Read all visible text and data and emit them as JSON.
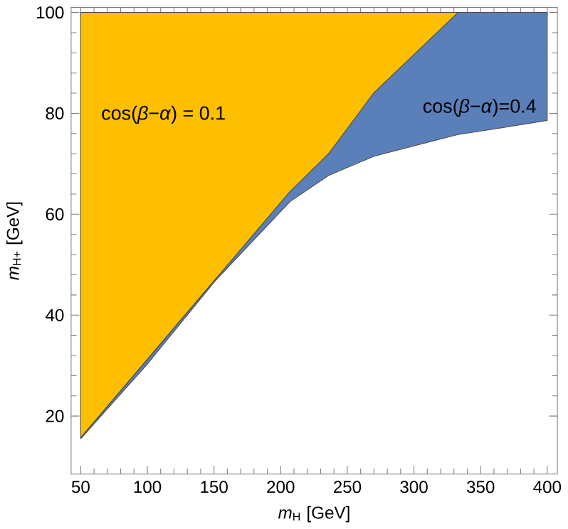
{
  "chart_data": {
    "type": "area",
    "xlabel": "*m*$_{H}$ [GeV]",
    "ylabel": "*m*$_{H+}$ [GeV]",
    "xlim": [
      42.8,
      407.6
    ],
    "ylim": [
      8.5,
      101
    ],
    "xticks": [
      50,
      100,
      150,
      200,
      250,
      300,
      350,
      400
    ],
    "yticks": [
      20,
      40,
      60,
      80,
      100
    ],
    "series": [
      {
        "color": "#fdbf00",
        "x": [
          50,
          151,
          236,
          333,
          50
        ],
        "values": [
          15.7,
          47.1,
          72,
          100,
          100
        ]
      },
      {
        "color": "#5b7fb8",
        "x": [
          50,
          100,
          151,
          207,
          236,
          270,
          333,
          360,
          400,
          400,
          333,
          270,
          236,
          207,
          151,
          100,
          50
        ],
        "values": [
          15.5,
          30.3,
          46.8,
          62.5,
          67.7,
          71.5,
          75.8,
          76.9,
          78.6,
          100,
          100,
          84.1,
          72,
          64.5,
          47.1,
          31.2,
          15.7
        ]
      }
    ],
    "annotations": [
      "cos(*β*−*α*) = 0.1",
      "cos(*β*−*α*)=0.4"
    ]
  }
}
